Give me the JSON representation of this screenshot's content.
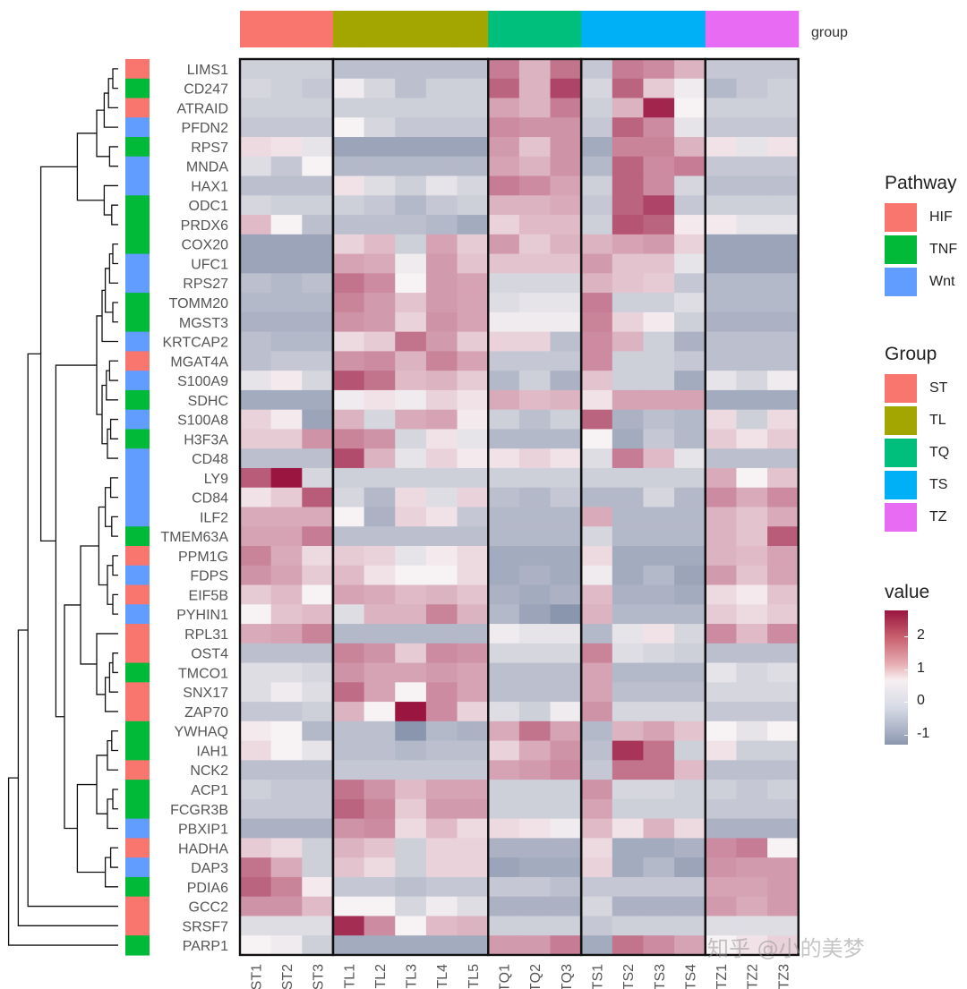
{
  "chart_data": {
    "type": "heatmap",
    "samples": [
      "ST1",
      "ST2",
      "ST3",
      "TL1",
      "TL2",
      "TL3",
      "TL4",
      "TL5",
      "TQ1",
      "TQ2",
      "TQ3",
      "TS1",
      "TS2",
      "TS3",
      "TS4",
      "TZ1",
      "TZ2",
      "TZ3"
    ],
    "sample_groups": [
      "ST",
      "ST",
      "ST",
      "TL",
      "TL",
      "TL",
      "TL",
      "TL",
      "TQ",
      "TQ",
      "TQ",
      "TS",
      "TS",
      "TS",
      "TS",
      "TZ",
      "TZ",
      "TZ"
    ],
    "genes": [
      "LIMS1",
      "CD247",
      "ATRAID",
      "PFDN2",
      "RPS7",
      "MNDA",
      "HAX1",
      "ODC1",
      "PRDX6",
      "COX20",
      "UFC1",
      "RPS27",
      "TOMM20",
      "MGST3",
      "KRTCAP2",
      "MGAT4A",
      "S100A9",
      "SDHC",
      "S100A8",
      "H3F3A",
      "CD48",
      "LY9",
      "CD84",
      "ILF2",
      "TMEM63A",
      "PPM1G",
      "FDPS",
      "EIF5B",
      "PYHIN1",
      "RPL31",
      "OST4",
      "TMCO1",
      "SNX17",
      "ZAP70",
      "YWHAQ",
      "IAH1",
      "NCK2",
      "ACP1",
      "FCGR3B",
      "PBXIP1",
      "HADHA",
      "DAP3",
      "PDIA6",
      "GCC2",
      "SRSF7",
      "PARP1"
    ],
    "pathway": [
      "HIF",
      "TNF",
      "HIF",
      "Wnt",
      "TNF",
      "Wnt",
      "Wnt",
      "TNF",
      "TNF",
      "TNF",
      "Wnt",
      "Wnt",
      "TNF",
      "TNF",
      "Wnt",
      "HIF",
      "Wnt",
      "TNF",
      "Wnt",
      "TNF",
      "Wnt",
      "Wnt",
      "Wnt",
      "Wnt",
      "TNF",
      "HIF",
      "Wnt",
      "HIF",
      "Wnt",
      "HIF",
      "HIF",
      "TNF",
      "HIF",
      "HIF",
      "TNF",
      "TNF",
      "HIF",
      "TNF",
      "TNF",
      "Wnt",
      "HIF",
      "Wnt",
      "TNF",
      "HIF",
      "HIF",
      "TNF"
    ],
    "values": [
      [
        -0.5,
        -0.5,
        -0.5,
        -0.7,
        -0.7,
        -0.7,
        -0.7,
        -0.7,
        1.5,
        0.8,
        1.6,
        -0.6,
        1.5,
        1.3,
        0.8,
        -0.6,
        -0.6,
        -0.6
      ],
      [
        -0.4,
        -0.5,
        -0.6,
        -0.1,
        -0.4,
        -0.7,
        -0.5,
        -0.5,
        1.8,
        0.8,
        2.2,
        -0.4,
        1.8,
        0.5,
        -0.1,
        -0.8,
        -0.6,
        -0.5
      ],
      [
        -0.5,
        -0.5,
        -0.5,
        -0.5,
        -0.5,
        -0.5,
        -0.5,
        -0.5,
        1.0,
        0.8,
        1.5,
        -0.5,
        0.8,
        2.6,
        0.0,
        -0.5,
        -0.5,
        -0.5
      ],
      [
        -0.6,
        -0.6,
        -0.6,
        0.0,
        -0.4,
        -0.6,
        -0.6,
        -0.6,
        1.3,
        1.2,
        1.2,
        -0.6,
        1.8,
        1.3,
        -0.2,
        -0.6,
        -0.6,
        -0.6
      ],
      [
        0.3,
        0.2,
        -0.2,
        -1.1,
        -1.1,
        -1.1,
        -1.1,
        -1.1,
        1.1,
        0.6,
        1.2,
        -1.0,
        1.4,
        1.4,
        0.8,
        0.2,
        -0.2,
        0.2
      ],
      [
        -0.3,
        -0.6,
        0.0,
        -0.8,
        -0.8,
        -0.8,
        -0.8,
        -0.8,
        1.0,
        0.8,
        1.2,
        -0.8,
        1.8,
        1.3,
        1.5,
        -0.6,
        -0.6,
        -0.6
      ],
      [
        -0.7,
        -0.7,
        -0.7,
        0.2,
        -0.3,
        -0.5,
        -0.2,
        -0.4,
        1.5,
        1.3,
        1.0,
        -0.5,
        1.8,
        1.3,
        -0.4,
        -0.7,
        -0.7,
        -0.7
      ],
      [
        -0.4,
        -0.5,
        -0.5,
        -0.5,
        -0.6,
        -0.8,
        -0.6,
        -0.5,
        0.8,
        0.8,
        0.9,
        -0.6,
        1.8,
        2.2,
        -0.6,
        -0.5,
        -0.5,
        -0.5
      ],
      [
        0.7,
        0.0,
        -0.7,
        -0.7,
        -0.7,
        -0.7,
        -0.8,
        -1.0,
        0.4,
        0.7,
        0.7,
        -0.5,
        2.0,
        1.8,
        0.1,
        0.1,
        -0.2,
        -0.2
      ],
      [
        -1.1,
        -1.1,
        -1.1,
        0.4,
        0.7,
        -0.5,
        1.0,
        0.5,
        1.1,
        0.5,
        0.8,
        0.8,
        1.0,
        1.1,
        0.4,
        -1.1,
        -1.1,
        -1.1
      ],
      [
        -1.1,
        -1.1,
        -1.1,
        1.0,
        0.9,
        -0.1,
        1.1,
        0.6,
        0.6,
        0.6,
        0.6,
        1.1,
        0.6,
        0.6,
        -0.2,
        -1.1,
        -1.1,
        -1.1
      ],
      [
        -0.7,
        -0.8,
        -0.7,
        1.6,
        1.3,
        0.0,
        1.1,
        1.0,
        -0.4,
        -0.4,
        -0.4,
        0.8,
        0.6,
        0.5,
        -0.6,
        -0.8,
        -0.8,
        -0.8
      ],
      [
        -0.8,
        -0.8,
        -0.8,
        1.4,
        1.1,
        0.6,
        1.1,
        1.0,
        -0.3,
        -0.2,
        -0.2,
        1.5,
        -0.5,
        -0.5,
        -0.3,
        -0.8,
        -0.8,
        -0.8
      ],
      [
        -0.9,
        -0.9,
        -0.9,
        1.2,
        1.1,
        0.4,
        1.2,
        1.0,
        -0.1,
        -0.1,
        -0.1,
        1.4,
        0.4,
        0.1,
        -0.5,
        -0.9,
        -0.9,
        -0.9
      ],
      [
        -0.7,
        -0.8,
        -0.8,
        0.3,
        0.5,
        1.6,
        1.1,
        0.5,
        0.4,
        0.4,
        -0.7,
        1.3,
        0.8,
        -0.5,
        -0.9,
        -0.7,
        -0.7,
        -0.7
      ],
      [
        -0.7,
        -0.6,
        -0.6,
        1.2,
        1.3,
        0.8,
        1.4,
        1.0,
        -0.6,
        -0.6,
        -0.6,
        1.3,
        -0.5,
        -0.5,
        -0.6,
        -0.7,
        -0.7,
        -0.7
      ],
      [
        -0.2,
        0.1,
        -0.4,
        2.0,
        1.6,
        0.7,
        0.8,
        0.5,
        -0.8,
        -0.5,
        -0.9,
        0.6,
        -0.5,
        -0.5,
        -1.0,
        -0.2,
        -0.4,
        -0.1
      ],
      [
        -1.0,
        -1.0,
        -1.0,
        -0.1,
        0.2,
        -0.1,
        0.4,
        0.2,
        0.9,
        0.7,
        0.8,
        0.2,
        1.0,
        1.0,
        1.0,
        -1.0,
        -1.0,
        -1.0
      ],
      [
        0.4,
        0.1,
        -1.1,
        0.8,
        -0.4,
        0.9,
        1.0,
        0.1,
        -0.5,
        -0.7,
        -0.5,
        1.8,
        -0.9,
        -0.7,
        -0.8,
        0.3,
        -0.5,
        0.3
      ],
      [
        0.5,
        0.5,
        1.2,
        1.4,
        1.2,
        -0.4,
        0.2,
        -0.2,
        -0.8,
        -0.8,
        -0.8,
        0.0,
        -1.0,
        -0.6,
        -0.8,
        0.5,
        0.2,
        0.5
      ],
      [
        -0.7,
        -0.7,
        -0.7,
        2.1,
        0.8,
        -0.2,
        0.4,
        0.1,
        0.2,
        0.4,
        0.2,
        -0.3,
        1.5,
        0.7,
        -0.2,
        -0.7,
        -0.7,
        -0.7
      ],
      [
        1.9,
        2.8,
        -0.4,
        -0.5,
        -0.5,
        -0.5,
        -0.5,
        -0.5,
        -0.5,
        -0.5,
        -0.5,
        -0.5,
        -0.5,
        -0.5,
        -0.5,
        0.9,
        0.0,
        0.6
      ],
      [
        0.2,
        0.5,
        1.9,
        -0.4,
        -0.8,
        0.3,
        -0.3,
        0.4,
        -0.7,
        -0.8,
        -0.6,
        -0.8,
        -0.8,
        -0.4,
        -0.8,
        1.3,
        0.9,
        1.3
      ],
      [
        0.9,
        0.9,
        0.9,
        0.0,
        -0.9,
        0.4,
        0.2,
        -0.6,
        -0.8,
        -0.8,
        -0.8,
        0.9,
        -0.8,
        -0.8,
        -0.8,
        0.8,
        0.6,
        0.9
      ],
      [
        1.0,
        1.0,
        1.5,
        -0.7,
        -0.7,
        -0.7,
        -0.7,
        -0.7,
        -0.8,
        -0.8,
        -0.8,
        -0.4,
        -0.8,
        -0.8,
        -0.8,
        0.8,
        0.6,
        1.9
      ],
      [
        1.4,
        0.9,
        0.3,
        0.5,
        0.4,
        -0.2,
        0.1,
        0.3,
        -1.0,
        -1.0,
        -1.0,
        0.3,
        -1.0,
        -1.0,
        -1.0,
        0.8,
        0.7,
        1.0
      ],
      [
        1.2,
        1.0,
        0.5,
        0.7,
        0.2,
        0.0,
        0.0,
        0.3,
        -1.0,
        -0.9,
        -1.0,
        -0.1,
        -1.0,
        -0.8,
        -1.1,
        1.1,
        0.6,
        1.0
      ],
      [
        0.5,
        0.7,
        0.0,
        1.0,
        0.9,
        0.7,
        0.8,
        0.6,
        -0.9,
        -1.0,
        -0.9,
        0.7,
        -0.9,
        -0.9,
        -1.0,
        0.3,
        0.1,
        0.6
      ],
      [
        0.0,
        0.6,
        0.7,
        -0.3,
        0.8,
        0.8,
        1.4,
        0.8,
        -0.8,
        -1.1,
        -1.3,
        0.8,
        -0.8,
        -0.8,
        -0.8,
        0.5,
        0.3,
        0.5
      ],
      [
        0.9,
        1.0,
        1.4,
        -0.8,
        -0.8,
        -0.8,
        -0.8,
        -0.8,
        -0.1,
        -0.2,
        -0.2,
        -0.8,
        -0.2,
        0.2,
        -0.4,
        1.3,
        0.7,
        1.3
      ],
      [
        -0.7,
        -0.7,
        -0.7,
        1.4,
        1.2,
        0.5,
        1.3,
        1.2,
        -0.4,
        -0.4,
        -0.4,
        1.4,
        -0.3,
        -0.4,
        -0.5,
        -0.7,
        -0.7,
        -0.7
      ],
      [
        -0.3,
        -0.3,
        -0.4,
        1.2,
        1.0,
        1.0,
        1.1,
        1.0,
        -0.7,
        -0.7,
        -0.7,
        1.0,
        -0.8,
        -0.8,
        -0.8,
        -0.2,
        -0.4,
        -0.3
      ],
      [
        -0.3,
        -0.1,
        -0.3,
        1.7,
        1.0,
        0.0,
        1.3,
        1.0,
        -0.7,
        -0.7,
        -0.7,
        1.0,
        -0.7,
        -0.7,
        -0.7,
        -0.4,
        -0.4,
        -0.4
      ],
      [
        -0.6,
        -0.6,
        -0.5,
        0.8,
        0.0,
        2.8,
        1.3,
        0.4,
        -0.3,
        -0.5,
        -0.1,
        1.2,
        -0.4,
        -0.4,
        -0.4,
        -0.6,
        -0.6,
        -0.6
      ],
      [
        0.1,
        0.0,
        -0.8,
        -0.7,
        -0.7,
        -1.3,
        -0.8,
        -0.9,
        0.9,
        1.6,
        1.0,
        -0.8,
        0.8,
        1.0,
        0.6,
        0.0,
        -0.2,
        0.0
      ],
      [
        0.3,
        0.0,
        -0.2,
        -0.7,
        -0.7,
        -0.8,
        -0.7,
        -0.7,
        0.4,
        0.9,
        1.2,
        -0.7,
        2.4,
        1.6,
        -0.5,
        0.2,
        -0.5,
        -0.5
      ],
      [
        -0.7,
        -0.7,
        -0.7,
        -0.6,
        -0.6,
        -0.6,
        -0.6,
        -0.6,
        1.0,
        1.1,
        1.3,
        -0.6,
        1.6,
        1.6,
        0.7,
        -0.7,
        -0.7,
        -0.7
      ],
      [
        -0.5,
        -0.6,
        -0.6,
        1.6,
        1.2,
        0.7,
        1.0,
        1.0,
        -0.5,
        -0.5,
        -0.5,
        1.2,
        -0.4,
        -0.4,
        -0.5,
        -0.5,
        -0.6,
        -0.5
      ],
      [
        -0.6,
        -0.6,
        -0.6,
        1.8,
        1.4,
        0.5,
        1.1,
        1.1,
        -0.5,
        -0.5,
        -0.5,
        1.0,
        -0.5,
        -0.5,
        -0.5,
        -0.6,
        -0.6,
        -0.6
      ],
      [
        -0.9,
        -0.9,
        -0.9,
        1.2,
        1.3,
        0.3,
        0.7,
        0.3,
        0.3,
        0.2,
        -0.1,
        0.7,
        0.2,
        0.8,
        0.3,
        -0.9,
        -0.9,
        -0.9
      ],
      [
        0.5,
        0.3,
        -0.5,
        0.8,
        0.6,
        -0.5,
        0.4,
        0.4,
        -0.9,
        -0.9,
        -0.9,
        0.3,
        -1.0,
        -1.0,
        -0.9,
        1.3,
        1.5,
        0.0
      ],
      [
        1.6,
        0.9,
        -0.5,
        0.6,
        0.3,
        -0.5,
        0.4,
        0.4,
        -1.1,
        -1.0,
        -1.0,
        0.4,
        -1.0,
        -0.8,
        -1.1,
        1.2,
        1.1,
        1.1
      ],
      [
        1.8,
        1.4,
        0.1,
        -0.6,
        -0.6,
        -0.7,
        -0.6,
        -0.6,
        -0.6,
        -0.6,
        -0.7,
        -0.6,
        -0.6,
        -0.6,
        -0.6,
        1.0,
        1.0,
        1.1
      ],
      [
        1.2,
        1.2,
        0.7,
        0.0,
        0.0,
        -0.4,
        -0.1,
        -0.3,
        -0.9,
        -0.9,
        -0.9,
        -0.4,
        -0.9,
        -0.9,
        -0.9,
        1.1,
        0.9,
        1.1
      ],
      [
        -0.3,
        -0.3,
        -0.3,
        2.5,
        1.3,
        0.0,
        0.7,
        0.8,
        -0.5,
        -0.5,
        -0.5,
        -0.6,
        -0.5,
        -0.5,
        -0.5,
        -0.3,
        -0.3,
        -0.3
      ],
      [
        0.0,
        -0.1,
        -0.5,
        -1.0,
        -1.0,
        -1.0,
        -1.0,
        -1.0,
        1.1,
        1.1,
        1.5,
        -1.0,
        1.6,
        1.3,
        1.0,
        0.0,
        0.2,
        0.4
      ]
    ],
    "column_annotation_label": "group",
    "legends": {
      "pathway": {
        "title": "Pathway",
        "items": [
          {
            "label": "HIF",
            "color": "#f8766d"
          },
          {
            "label": "TNF",
            "color": "#00ba38"
          },
          {
            "label": "Wnt",
            "color": "#619cff"
          }
        ]
      },
      "group": {
        "title": "Group",
        "items": [
          {
            "label": "ST",
            "color": "#f8766d"
          },
          {
            "label": "TL",
            "color": "#a3a500"
          },
          {
            "label": "TQ",
            "color": "#00bf7d"
          },
          {
            "label": "TS",
            "color": "#00b0f6"
          },
          {
            "label": "TZ",
            "color": "#e76bf3"
          }
        ]
      },
      "value": {
        "title": "value",
        "ticks": [
          "2",
          "1",
          "0",
          "-1"
        ],
        "tick_values": [
          2,
          1,
          0,
          -1
        ],
        "range": [
          -1.3,
          2.8
        ]
      }
    },
    "color_scale": {
      "low": "#8a96ae",
      "mid": "#f7f2f4",
      "high": "#9a1540"
    }
  },
  "watermark": "知乎 @小的美梦"
}
